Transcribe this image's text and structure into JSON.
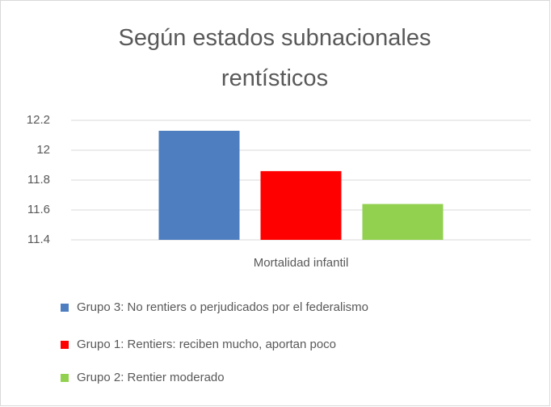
{
  "chart_data": {
    "type": "bar",
    "title": "Según estados subnacionales rentísticos",
    "categories": [
      "Mortalidad infantil"
    ],
    "series": [
      {
        "name": "Grupo 3: No rentiers o perjudicados por el federalismo",
        "color": "#4e7ebf",
        "values": [
          12.13
        ]
      },
      {
        "name": "Grupo 1: Rentiers: reciben mucho, aportan poco",
        "color": "#ff0000",
        "values": [
          11.86
        ]
      },
      {
        "name": "Grupo 2: Rentier moderado",
        "color": "#92d050",
        "values": [
          11.64
        ]
      }
    ],
    "ylim": [
      11.4,
      12.2
    ],
    "yticks": [
      11.4,
      11.6,
      11.8,
      12,
      12.2
    ],
    "grid": true,
    "legend": "bottom"
  }
}
